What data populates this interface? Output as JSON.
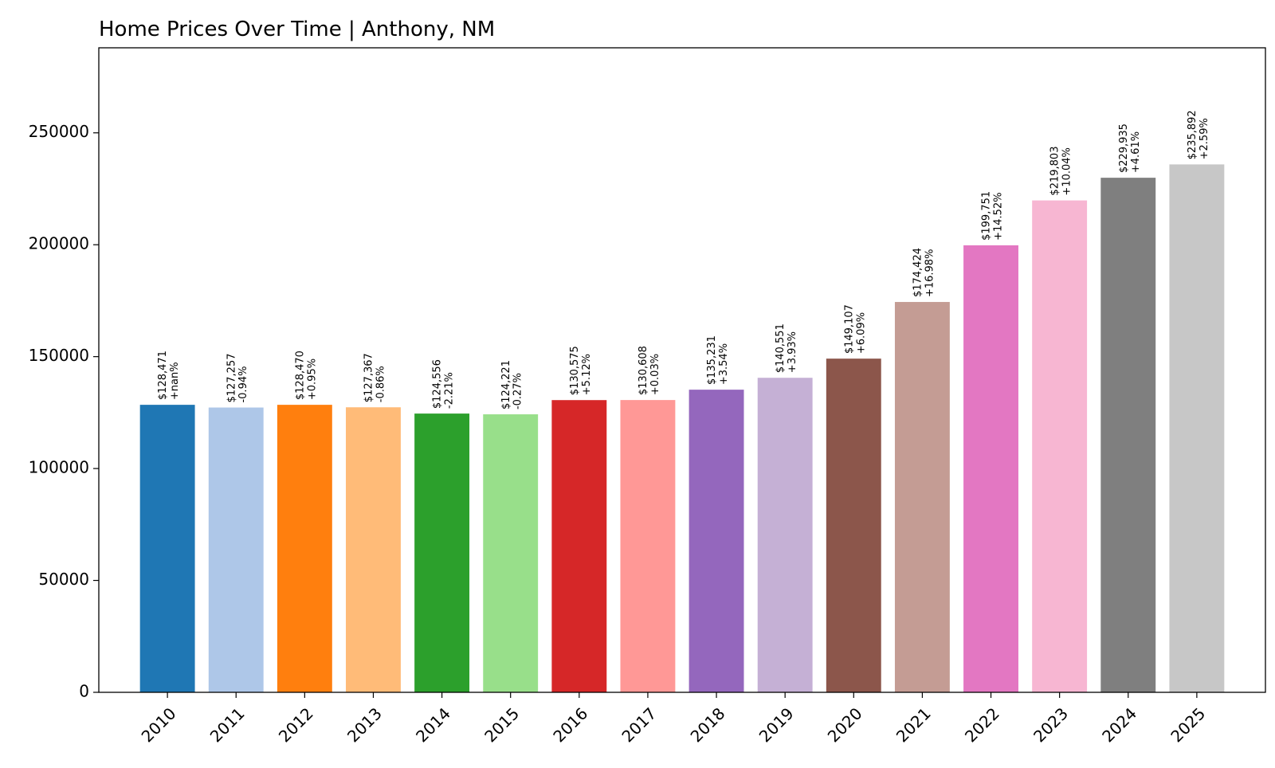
{
  "chart_data": {
    "type": "bar",
    "title": "Home Prices Over Time | Anthony, NM",
    "xlabel": "",
    "ylabel": "",
    "categories": [
      "2010",
      "2011",
      "2012",
      "2013",
      "2014",
      "2015",
      "2016",
      "2017",
      "2018",
      "2019",
      "2020",
      "2021",
      "2022",
      "2023",
      "2024",
      "2025"
    ],
    "values": [
      128471,
      127257,
      128470,
      127367,
      124556,
      124221,
      130575,
      130608,
      135231,
      140551,
      149107,
      174424,
      199751,
      219803,
      229935,
      235892
    ],
    "value_labels": [
      "$128,471",
      "$127,257",
      "$128,470",
      "$127,367",
      "$124,556",
      "$124,221",
      "$130,575",
      "$130,608",
      "$135,231",
      "$140,551",
      "$149,107",
      "$174,424",
      "$199,751",
      "$219,803",
      "$229,935",
      "$235,892"
    ],
    "change_labels": [
      "+nan%",
      "-0.94%",
      "+0.95%",
      "-0.86%",
      "-2.21%",
      "-0.27%",
      "+5.12%",
      "+0.03%",
      "+3.54%",
      "+3.93%",
      "+6.09%",
      "+16.98%",
      "+14.52%",
      "+10.04%",
      "+4.61%",
      "+2.59%"
    ],
    "colors": [
      "#1f77b4",
      "#aec7e8",
      "#ff7f0e",
      "#ffbb78",
      "#2ca02c",
      "#98df8a",
      "#d62728",
      "#ff9896",
      "#9467bd",
      "#c5b0d5",
      "#8c564b",
      "#c49c94",
      "#e377c2",
      "#f7b6d2",
      "#7f7f7f",
      "#c7c7c7"
    ],
    "yticks": [
      0,
      50000,
      100000,
      150000,
      200000,
      250000
    ],
    "ylim": [
      0,
      288000
    ],
    "grid": false,
    "legend": "none"
  }
}
